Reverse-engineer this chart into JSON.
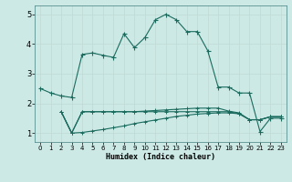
{
  "xlabel": "Humidex (Indice chaleur)",
  "bg_color": "#cce9e5",
  "grid_color": "#c0d8d5",
  "line_color": "#1a6b5e",
  "xlim": [
    -0.5,
    23.5
  ],
  "ylim": [
    0.7,
    5.3
  ],
  "xticks": [
    0,
    1,
    2,
    3,
    4,
    5,
    6,
    7,
    8,
    9,
    10,
    11,
    12,
    13,
    14,
    15,
    16,
    17,
    18,
    19,
    20,
    21,
    22,
    23
  ],
  "yticks": [
    1,
    2,
    3,
    4,
    5
  ],
  "line1_x": [
    0,
    1,
    2,
    3,
    4,
    5,
    6,
    7,
    8,
    9,
    10,
    11,
    12,
    13,
    14,
    15,
    16,
    17,
    18,
    19,
    20,
    21,
    22,
    23
  ],
  "line1_y": [
    2.5,
    2.35,
    2.25,
    2.2,
    3.65,
    3.7,
    3.62,
    3.55,
    4.35,
    3.88,
    4.22,
    4.82,
    5.0,
    4.82,
    4.42,
    4.42,
    3.78,
    2.55,
    2.55,
    2.35,
    2.35,
    1.05,
    1.5,
    1.5
  ],
  "line2_x": [
    2,
    3,
    4,
    5,
    6,
    7,
    8,
    9,
    10,
    11,
    12,
    13,
    14,
    15,
    16,
    17,
    18,
    19,
    20,
    21,
    22,
    23
  ],
  "line2_y": [
    1.72,
    1.0,
    1.72,
    1.72,
    1.72,
    1.72,
    1.72,
    1.72,
    1.72,
    1.72,
    1.72,
    1.72,
    1.72,
    1.72,
    1.72,
    1.72,
    1.72,
    1.65,
    1.45,
    1.45,
    1.55,
    1.55
  ],
  "line3_x": [
    2,
    3,
    4,
    5,
    6,
    7,
    8,
    9,
    10,
    11,
    12,
    13,
    14,
    15,
    16,
    17,
    18,
    19,
    20,
    21,
    22,
    23
  ],
  "line3_y": [
    1.72,
    1.0,
    1.02,
    1.07,
    1.12,
    1.18,
    1.24,
    1.32,
    1.38,
    1.44,
    1.5,
    1.56,
    1.6,
    1.64,
    1.66,
    1.68,
    1.68,
    1.65,
    1.45,
    1.45,
    1.55,
    1.55
  ],
  "line4_x": [
    2,
    3,
    4,
    5,
    6,
    7,
    8,
    9,
    10,
    11,
    12,
    13,
    14,
    15,
    16,
    17,
    18,
    19,
    20,
    21,
    22,
    23
  ],
  "line4_y": [
    1.72,
    1.0,
    1.72,
    1.72,
    1.72,
    1.72,
    1.72,
    1.72,
    1.74,
    1.76,
    1.78,
    1.8,
    1.82,
    1.84,
    1.84,
    1.84,
    1.74,
    1.68,
    1.45,
    1.45,
    1.55,
    1.55
  ]
}
